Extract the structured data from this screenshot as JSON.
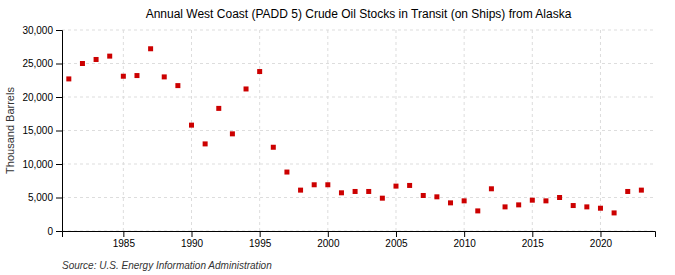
{
  "chart_data": {
    "type": "scatter",
    "title": "Annual West Coast (PADD 5) Crude Oil Stocks in Transit (on Ships) from Alaska",
    "ylabel": "Thousand Barrels",
    "source": "Source: U.S. Energy Information Administration",
    "color": "#cc0000",
    "marker": "square",
    "grid": true,
    "x": [
      1981,
      1982,
      1983,
      1984,
      1985,
      1986,
      1987,
      1988,
      1989,
      1990,
      1991,
      1992,
      1993,
      1994,
      1995,
      1996,
      1997,
      1998,
      1999,
      2000,
      2001,
      2002,
      2003,
      2004,
      2005,
      2006,
      2007,
      2008,
      2009,
      2010,
      2011,
      2012,
      2013,
      2014,
      2015,
      2016,
      2017,
      2018,
      2019,
      2020,
      2021,
      2022,
      2023
    ],
    "values": [
      22700,
      25000,
      25600,
      26100,
      23100,
      23200,
      27200,
      23000,
      21700,
      15800,
      13000,
      18300,
      14500,
      21200,
      23800,
      12500,
      8800,
      6100,
      6900,
      6900,
      5700,
      5900,
      5900,
      4900,
      6700,
      6800,
      5300,
      5100,
      4200,
      4500,
      3000,
      6300,
      3600,
      3900,
      4600,
      4500,
      5000,
      3800,
      3600,
      3400,
      2700,
      5900,
      6100
    ],
    "xlim": [
      1980.5,
      2024
    ],
    "xticks": [
      1985,
      1990,
      1995,
      2000,
      2005,
      2010,
      2015,
      2020
    ],
    "ylim": [
      0,
      30000
    ],
    "yticks": [
      0,
      {
        "value": 5000,
        "label": "5,000"
      },
      {
        "value": 10000,
        "label": "10,000"
      },
      {
        "value": 15000,
        "label": "15,000"
      },
      {
        "value": 20000,
        "label": "20,000"
      },
      {
        "value": 25000,
        "label": "25,000"
      },
      {
        "value": 30000,
        "label": "30,000"
      }
    ]
  }
}
